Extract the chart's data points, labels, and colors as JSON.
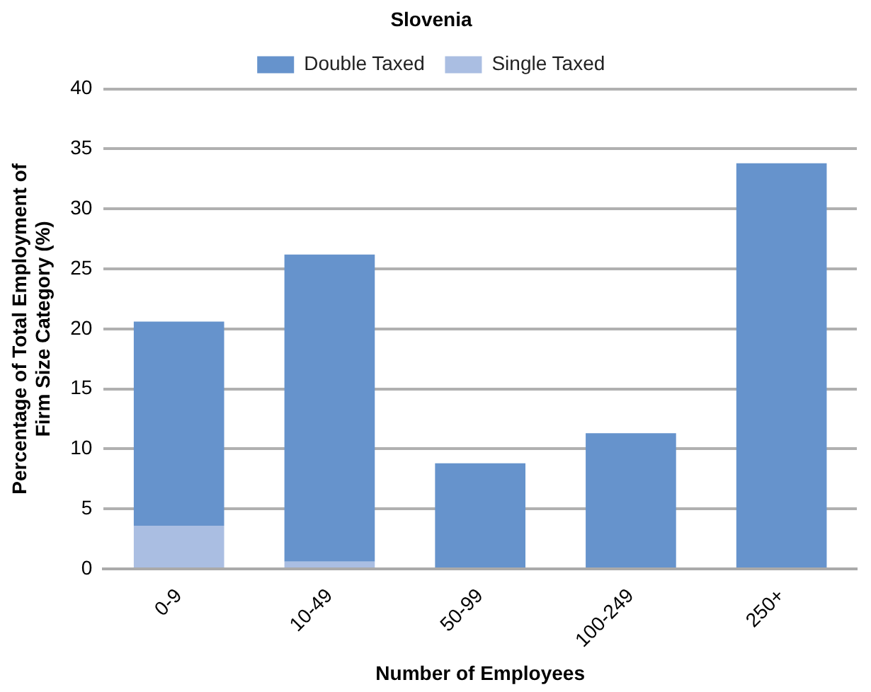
{
  "chart_data": {
    "type": "bar",
    "title": "Slovenia",
    "xlabel": "Number of Employees",
    "ylabel": "Percentage of Total Employment of Firm Size Category (%)",
    "categories": [
      "0-9",
      "10-49",
      "50-99",
      "100-249",
      "250+"
    ],
    "stacked": true,
    "series": [
      {
        "name": "Single Taxed",
        "color": "#aabee2",
        "values": [
          3.6,
          0.6,
          0,
          0,
          0
        ]
      },
      {
        "name": "Double Taxed",
        "color": "#6693cc",
        "values": [
          17.0,
          25.6,
          8.8,
          11.3,
          33.8
        ]
      }
    ],
    "ylim": [
      0,
      40
    ],
    "yticks": [
      0,
      5,
      10,
      15,
      20,
      25,
      30,
      35,
      40
    ],
    "grid": "y",
    "legend": "top"
  }
}
